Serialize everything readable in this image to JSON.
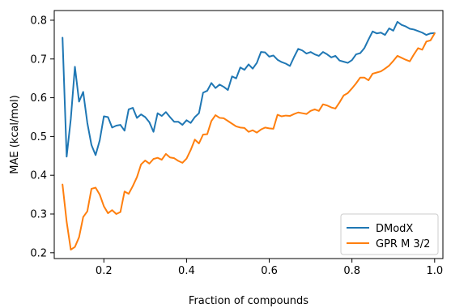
{
  "chart_data": {
    "type": "line",
    "title": "",
    "xlabel": "Fraction of compounds",
    "ylabel": "MAE (kcal/mol)",
    "xlim": [
      0.08,
      1.02
    ],
    "ylim": [
      0.185,
      0.825
    ],
    "xticks": [
      0.2,
      0.4,
      0.6,
      0.8,
      1.0
    ],
    "xtick_labels": [
      "0.2",
      "0.4",
      "0.6",
      "0.8",
      "1.0"
    ],
    "yticks": [
      0.2,
      0.3,
      0.4,
      0.5,
      0.6,
      0.7,
      0.8
    ],
    "ytick_labels": [
      "0.2",
      "0.3",
      "0.4",
      "0.5",
      "0.6",
      "0.7",
      "0.8"
    ],
    "grid": false,
    "legend_position": "lower-right",
    "series": [
      {
        "name": "DModX",
        "color": "#1f77b4",
        "x": [
          0.1,
          0.11,
          0.12,
          0.13,
          0.14,
          0.15,
          0.16,
          0.17,
          0.18,
          0.19,
          0.2,
          0.21,
          0.22,
          0.23,
          0.24,
          0.25,
          0.26,
          0.27,
          0.28,
          0.29,
          0.3,
          0.31,
          0.32,
          0.33,
          0.34,
          0.35,
          0.36,
          0.37,
          0.38,
          0.39,
          0.4,
          0.41,
          0.42,
          0.43,
          0.44,
          0.45,
          0.46,
          0.47,
          0.48,
          0.49,
          0.5,
          0.51,
          0.52,
          0.53,
          0.54,
          0.55,
          0.56,
          0.57,
          0.58,
          0.59,
          0.6,
          0.61,
          0.62,
          0.63,
          0.64,
          0.65,
          0.66,
          0.67,
          0.68,
          0.69,
          0.7,
          0.71,
          0.72,
          0.73,
          0.74,
          0.75,
          0.76,
          0.77,
          0.78,
          0.79,
          0.8,
          0.81,
          0.82,
          0.83,
          0.84,
          0.85,
          0.86,
          0.87,
          0.88,
          0.89,
          0.9,
          0.91,
          0.92,
          0.93,
          0.94,
          0.95,
          0.96,
          0.97,
          0.98,
          0.99,
          1.0
        ],
        "values": [
          0.755,
          0.448,
          0.545,
          0.68,
          0.59,
          0.615,
          0.535,
          0.478,
          0.452,
          0.49,
          0.552,
          0.55,
          0.523,
          0.528,
          0.53,
          0.515,
          0.57,
          0.574,
          0.548,
          0.557,
          0.55,
          0.537,
          0.512,
          0.56,
          0.553,
          0.563,
          0.55,
          0.538,
          0.538,
          0.53,
          0.542,
          0.535,
          0.55,
          0.56,
          0.613,
          0.618,
          0.638,
          0.625,
          0.634,
          0.628,
          0.62,
          0.655,
          0.65,
          0.678,
          0.672,
          0.686,
          0.675,
          0.69,
          0.718,
          0.717,
          0.706,
          0.709,
          0.698,
          0.692,
          0.688,
          0.682,
          0.705,
          0.726,
          0.722,
          0.714,
          0.718,
          0.712,
          0.708,
          0.718,
          0.712,
          0.704,
          0.708,
          0.696,
          0.693,
          0.69,
          0.697,
          0.712,
          0.715,
          0.728,
          0.75,
          0.771,
          0.766,
          0.768,
          0.762,
          0.779,
          0.773,
          0.796,
          0.788,
          0.784,
          0.778,
          0.776,
          0.772,
          0.768,
          0.762,
          0.766,
          0.767
        ]
      },
      {
        "name": "GPR M 3/2",
        "color": "#ff7f0e",
        "x": [
          0.1,
          0.11,
          0.12,
          0.13,
          0.14,
          0.15,
          0.16,
          0.17,
          0.18,
          0.19,
          0.2,
          0.21,
          0.22,
          0.23,
          0.24,
          0.25,
          0.26,
          0.27,
          0.28,
          0.29,
          0.3,
          0.31,
          0.32,
          0.33,
          0.34,
          0.35,
          0.36,
          0.37,
          0.38,
          0.39,
          0.4,
          0.41,
          0.42,
          0.43,
          0.44,
          0.45,
          0.46,
          0.47,
          0.48,
          0.49,
          0.5,
          0.51,
          0.52,
          0.53,
          0.54,
          0.55,
          0.56,
          0.57,
          0.58,
          0.59,
          0.6,
          0.61,
          0.62,
          0.63,
          0.64,
          0.65,
          0.66,
          0.67,
          0.68,
          0.69,
          0.7,
          0.71,
          0.72,
          0.73,
          0.74,
          0.75,
          0.76,
          0.77,
          0.78,
          0.79,
          0.8,
          0.81,
          0.82,
          0.83,
          0.84,
          0.85,
          0.86,
          0.87,
          0.88,
          0.89,
          0.9,
          0.91,
          0.92,
          0.93,
          0.94,
          0.95,
          0.96,
          0.97,
          0.98,
          0.99,
          1.0
        ],
        "values": [
          0.376,
          0.28,
          0.208,
          0.215,
          0.24,
          0.292,
          0.307,
          0.365,
          0.368,
          0.35,
          0.32,
          0.302,
          0.31,
          0.3,
          0.305,
          0.358,
          0.352,
          0.372,
          0.395,
          0.428,
          0.438,
          0.43,
          0.442,
          0.445,
          0.44,
          0.455,
          0.446,
          0.444,
          0.437,
          0.432,
          0.443,
          0.465,
          0.492,
          0.482,
          0.505,
          0.506,
          0.54,
          0.555,
          0.548,
          0.547,
          0.54,
          0.533,
          0.526,
          0.523,
          0.522,
          0.512,
          0.516,
          0.51,
          0.518,
          0.523,
          0.521,
          0.52,
          0.556,
          0.552,
          0.554,
          0.553,
          0.558,
          0.562,
          0.56,
          0.558,
          0.566,
          0.57,
          0.566,
          0.583,
          0.58,
          0.575,
          0.572,
          0.588,
          0.606,
          0.612,
          0.624,
          0.637,
          0.652,
          0.652,
          0.645,
          0.662,
          0.665,
          0.668,
          0.675,
          0.683,
          0.695,
          0.708,
          0.703,
          0.698,
          0.694,
          0.712,
          0.728,
          0.724,
          0.745,
          0.748,
          0.766
        ]
      }
    ]
  }
}
